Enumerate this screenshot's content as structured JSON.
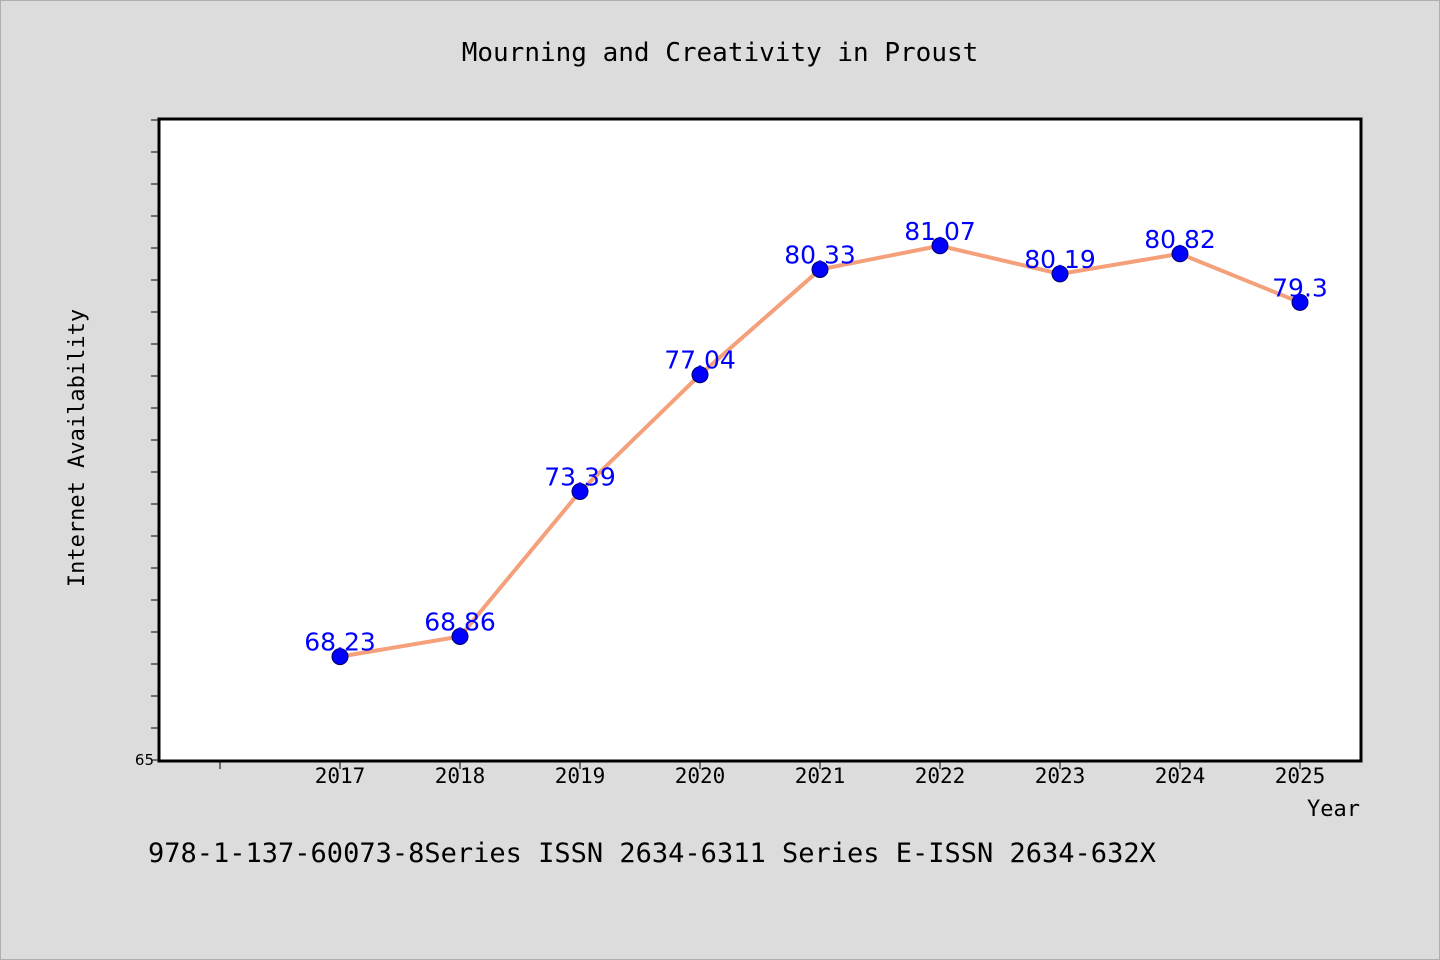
{
  "chart_data": {
    "type": "line",
    "title": "Mourning and Creativity in Proust",
    "xlabel": "Year",
    "ylabel": "Internet Availability",
    "categories": [
      "2017",
      "2018",
      "2019",
      "2020",
      "2021",
      "2022",
      "2023",
      "2024",
      "2025"
    ],
    "series": [
      {
        "values": [
          68.23,
          68.86,
          73.39,
          77.04,
          80.33,
          81.07,
          80.19,
          80.82,
          79.3
        ],
        "labels": [
          "68.23",
          "68.86",
          "73.39",
          "77.04",
          "80.33",
          "81.07",
          "80.19",
          "80.82",
          "79.3"
        ],
        "line_color": "#f4a07a",
        "marker_color": "#0000ff",
        "label_color": "#0000ff"
      }
    ],
    "ylim": [
      65,
      85
    ],
    "y_tick_labels": [
      "65"
    ],
    "grid": false,
    "legend": "none"
  },
  "footer": {
    "text": "978-1-137-60073-8Series ISSN 2634-6311 Series E-ISSN 2634-632X"
  }
}
